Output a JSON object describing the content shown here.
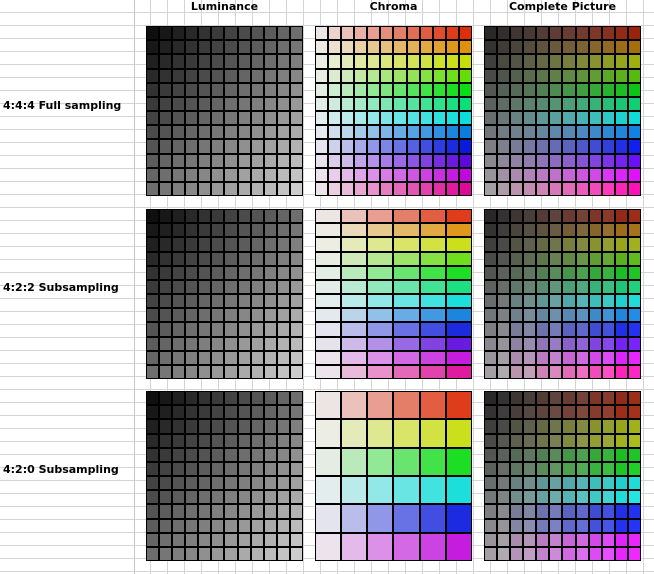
{
  "columns": [
    "Luminance",
    "Chroma",
    "Complete Picture"
  ],
  "rows": [
    {
      "label": "4:4:4 Full sampling"
    },
    {
      "label": "4:2:2 Subsampling"
    },
    {
      "label": "4:2:0 Subsampling"
    }
  ]
}
